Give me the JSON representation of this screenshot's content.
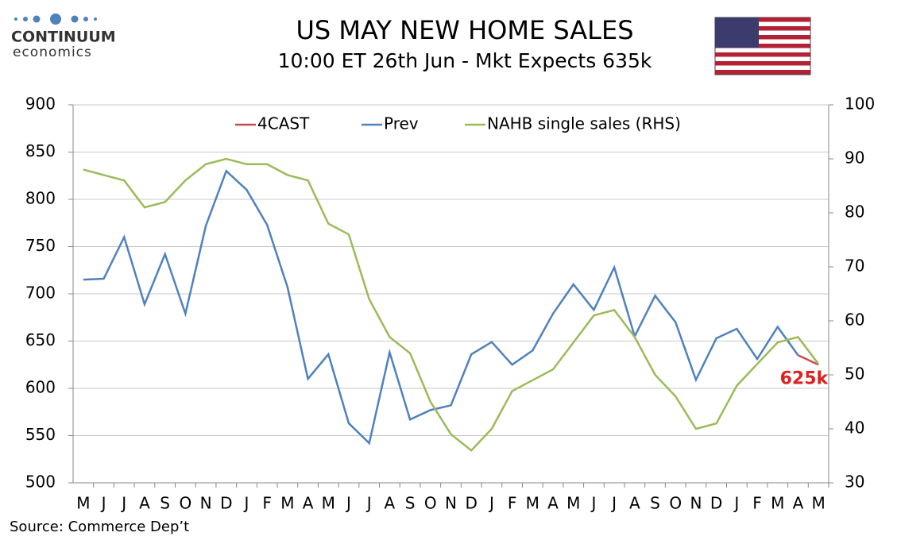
{
  "brand": {
    "name": "CONTINUUM",
    "tagline": "economics"
  },
  "source": "Source: Commerce Dep’t",
  "chart_data": {
    "type": "line",
    "title": "US MAY NEW HOME SALES",
    "subtitle": "10:00 ET 26th Jun - Mkt Expects 635k",
    "categories": [
      "M",
      "J",
      "J",
      "A",
      "S",
      "O",
      "N",
      "D",
      "J",
      "F",
      "M",
      "A",
      "M",
      "J",
      "J",
      "A",
      "S",
      "O",
      "N",
      "D",
      "J",
      "F",
      "M",
      "A",
      "M",
      "J",
      "J",
      "A",
      "S",
      "O",
      "N",
      "D",
      "J",
      "F",
      "M",
      "A",
      "M"
    ],
    "series": [
      {
        "name": "4CAST",
        "color": "#c0504d",
        "values": [
          null,
          null,
          null,
          null,
          null,
          null,
          null,
          null,
          null,
          null,
          null,
          null,
          null,
          null,
          null,
          null,
          null,
          null,
          null,
          null,
          null,
          null,
          null,
          null,
          null,
          null,
          null,
          null,
          null,
          null,
          null,
          null,
          null,
          null,
          null,
          635,
          625
        ],
        "value_labels": [
          null,
          null,
          null,
          null,
          null,
          null,
          null,
          null,
          null,
          null,
          null,
          null,
          null,
          null,
          null,
          null,
          null,
          null,
          null,
          null,
          null,
          null,
          null,
          null,
          null,
          null,
          null,
          null,
          null,
          null,
          null,
          null,
          null,
          null,
          null,
          null,
          "625k"
        ]
      },
      {
        "name": "Prev",
        "color": "#4f81bd",
        "values": [
          715,
          716,
          760,
          689,
          742,
          679,
          772,
          830,
          810,
          773,
          707,
          610,
          636,
          563,
          542,
          638,
          567,
          577,
          582,
          636,
          649,
          625,
          640,
          679,
          710,
          683,
          728,
          655,
          698,
          670,
          609,
          653,
          663,
          631,
          665,
          635,
          null
        ]
      },
      {
        "name": "NAHB single sales (RHS)",
        "color": "#9bbb59",
        "axis": "y2",
        "values": [
          88,
          87,
          86,
          81,
          82,
          86,
          89,
          90,
          89,
          89,
          87,
          86,
          78,
          76,
          64,
          57,
          54,
          45,
          39,
          36,
          40,
          47,
          49,
          51,
          56,
          61,
          62,
          57,
          50,
          46,
          40,
          41,
          48,
          52,
          56,
          57,
          52
        ]
      }
    ],
    "ylim": [
      500,
      900
    ],
    "yticks": [
      500,
      550,
      600,
      650,
      700,
      750,
      800,
      850,
      900
    ],
    "y2lim": [
      30,
      100
    ],
    "y2ticks": [
      30,
      40,
      50,
      60,
      70,
      80,
      90,
      100
    ],
    "grid": true,
    "legend": "top"
  }
}
